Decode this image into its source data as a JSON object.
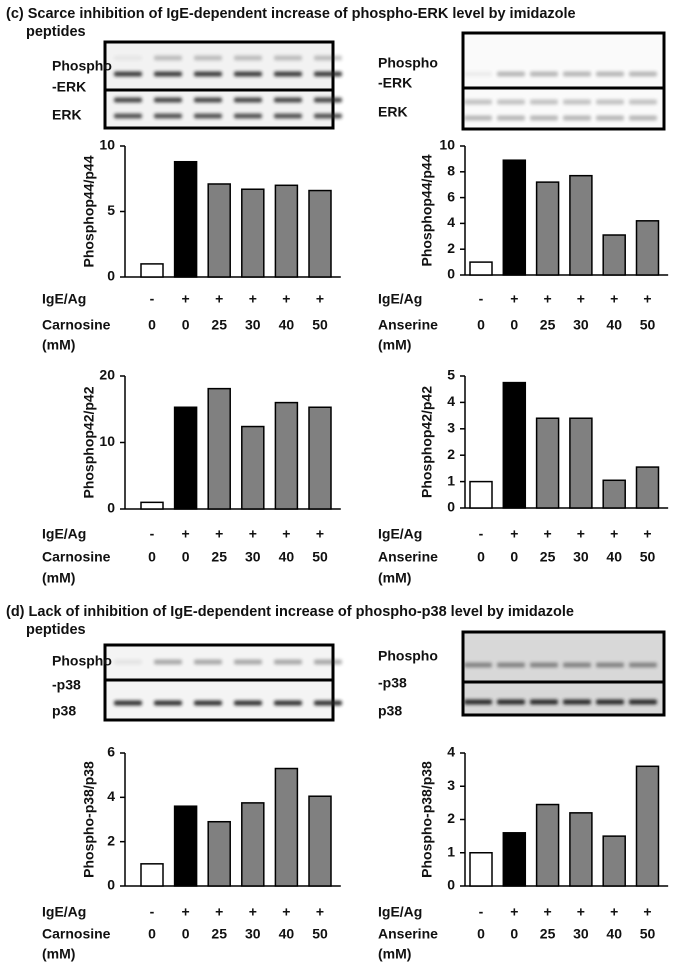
{
  "sections": [
    {
      "title_lines": [
        "(c) Scarce inhibition of IgE-dependent increase of phospho-ERK level by imidazole",
        "peptides"
      ]
    },
    {
      "title_lines": [
        "(d) Lack of  inhibition of IgE-dependent increase of phospho-p38 level by imidazole",
        "peptides"
      ]
    }
  ],
  "blots": [
    {
      "labels": [
        [
          "Phospho",
          "-ERK"
        ],
        [
          "ERK"
        ]
      ]
    },
    {
      "labels": [
        [
          "Phospho",
          "-ERK"
        ],
        [
          "ERK"
        ]
      ]
    },
    {
      "labels": [
        [
          "Phospho",
          "-p38"
        ],
        [
          "p38"
        ]
      ]
    },
    {
      "labels": [
        [
          "Phospho",
          "-p38"
        ],
        [
          "p38"
        ]
      ]
    }
  ],
  "chart_data": [
    {
      "type": "bar",
      "ylabel": "Phosphop44/p44",
      "treatment_label": "IgE/Ag",
      "treatment_values": [
        "-",
        "+",
        "+",
        "+",
        "+",
        "+"
      ],
      "category_label": [
        "Carnosine",
        "(mM)"
      ],
      "categories": [
        "0",
        "0",
        "25",
        "30",
        "40",
        "50"
      ],
      "values": [
        1,
        8.8,
        7.1,
        6.7,
        7.0,
        6.6
      ],
      "colors": [
        "#ffffff",
        "#000000",
        "#808080",
        "#808080",
        "#808080",
        "#808080"
      ],
      "ylim": [
        0,
        10
      ],
      "yticks": [
        0,
        5,
        10
      ]
    },
    {
      "type": "bar",
      "ylabel": "Phosphop44/p44",
      "treatment_label": "IgE/Ag",
      "treatment_values": [
        "-",
        "+",
        "+",
        "+",
        "+",
        "+"
      ],
      "category_label": [
        "Anserine",
        "(mM)"
      ],
      "categories": [
        "0",
        "0",
        "25",
        "30",
        "40",
        "50"
      ],
      "values": [
        1,
        8.9,
        7.2,
        7.7,
        3.1,
        4.2
      ],
      "colors": [
        "#ffffff",
        "#000000",
        "#808080",
        "#808080",
        "#808080",
        "#808080"
      ],
      "ylim": [
        0,
        10
      ],
      "yticks": [
        0,
        2,
        4,
        6,
        8,
        10
      ]
    },
    {
      "type": "bar",
      "ylabel": "Phosphop42/p42",
      "treatment_label": "IgE/Ag",
      "treatment_values": [
        "-",
        "+",
        "+",
        "+",
        "+",
        "+"
      ],
      "category_label": [
        "Carnosine",
        "(mM)"
      ],
      "categories": [
        "0",
        "0",
        "25",
        "30",
        "40",
        "50"
      ],
      "values": [
        1,
        15.3,
        18.1,
        12.4,
        16.0,
        15.3
      ],
      "colors": [
        "#ffffff",
        "#000000",
        "#808080",
        "#808080",
        "#808080",
        "#808080"
      ],
      "ylim": [
        0,
        20
      ],
      "yticks": [
        0,
        10,
        20
      ]
    },
    {
      "type": "bar",
      "ylabel": "Phosphop42/p42",
      "treatment_label": "IgE/Ag",
      "treatment_values": [
        "-",
        "+",
        "+",
        "+",
        "+",
        "+"
      ],
      "category_label": [
        "Anserine",
        "(mM)"
      ],
      "categories": [
        "0",
        "0",
        "25",
        "30",
        "40",
        "50"
      ],
      "values": [
        1,
        4.75,
        3.4,
        3.4,
        1.05,
        1.55
      ],
      "colors": [
        "#ffffff",
        "#000000",
        "#808080",
        "#808080",
        "#808080",
        "#808080"
      ],
      "ylim": [
        0,
        5
      ],
      "yticks": [
        0,
        1,
        2,
        3,
        4,
        5
      ]
    },
    {
      "type": "bar",
      "ylabel": "Phospho-p38/p38",
      "treatment_label": "IgE/Ag",
      "treatment_values": [
        "-",
        "+",
        "+",
        "+",
        "+",
        "+"
      ],
      "category_label": [
        "Carnosine",
        "(mM)"
      ],
      "categories": [
        "0",
        "0",
        "25",
        "30",
        "40",
        "50"
      ],
      "values": [
        1,
        3.6,
        2.9,
        3.75,
        5.3,
        4.05
      ],
      "colors": [
        "#ffffff",
        "#000000",
        "#808080",
        "#808080",
        "#808080",
        "#808080"
      ],
      "ylim": [
        0,
        6
      ],
      "yticks": [
        0,
        2,
        4,
        6
      ]
    },
    {
      "type": "bar",
      "ylabel": "Phospho-p38/p38",
      "treatment_label": "IgE/Ag",
      "treatment_values": [
        "-",
        "+",
        "+",
        "+",
        "+",
        "+"
      ],
      "category_label": [
        "Anserine",
        "(mM)"
      ],
      "categories": [
        "0",
        "0",
        "25",
        "30",
        "40",
        "50"
      ],
      "values": [
        1,
        1.6,
        2.45,
        2.2,
        1.5,
        3.6
      ],
      "colors": [
        "#ffffff",
        "#000000",
        "#808080",
        "#808080",
        "#808080",
        "#808080"
      ],
      "ylim": [
        0,
        4
      ],
      "yticks": [
        0,
        1,
        2,
        3,
        4
      ]
    }
  ]
}
